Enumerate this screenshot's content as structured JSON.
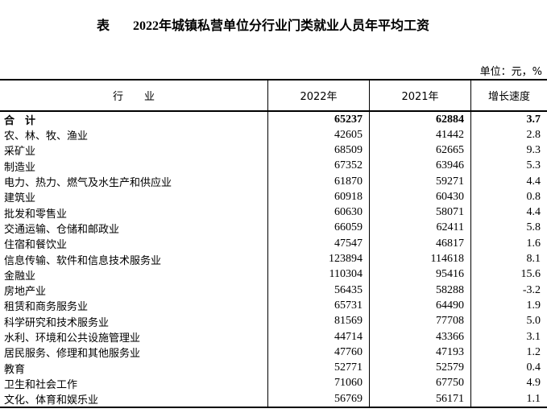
{
  "title": {
    "label": "表",
    "text": "2022年城镇私营单位分行业门类就业人员年平均工资"
  },
  "unit": "单位：元，%",
  "headers": [
    "行　　业",
    "2022年",
    "2021年",
    "增长速度"
  ],
  "rows": [
    {
      "industry": "合　计",
      "y2022": "65237",
      "y2021": "62884",
      "growth": "3.7"
    },
    {
      "industry": "农、林、牧、渔业",
      "y2022": "42605",
      "y2021": "41442",
      "growth": "2.8"
    },
    {
      "industry": "采矿业",
      "y2022": "68509",
      "y2021": "62665",
      "growth": "9.3"
    },
    {
      "industry": "制造业",
      "y2022": "67352",
      "y2021": "63946",
      "growth": "5.3"
    },
    {
      "industry": "电力、热力、燃气及水生产和供应业",
      "y2022": "61870",
      "y2021": "59271",
      "growth": "4.4"
    },
    {
      "industry": "建筑业",
      "y2022": "60918",
      "y2021": "60430",
      "growth": "0.8"
    },
    {
      "industry": "批发和零售业",
      "y2022": "60630",
      "y2021": "58071",
      "growth": "4.4"
    },
    {
      "industry": "交通运输、仓储和邮政业",
      "y2022": "66059",
      "y2021": "62411",
      "growth": "5.8"
    },
    {
      "industry": "住宿和餐饮业",
      "y2022": "47547",
      "y2021": "46817",
      "growth": "1.6"
    },
    {
      "industry": "信息传输、软件和信息技术服务业",
      "y2022": "123894",
      "y2021": "114618",
      "growth": "8.1"
    },
    {
      "industry": "金融业",
      "y2022": "110304",
      "y2021": "95416",
      "growth": "15.6"
    },
    {
      "industry": "房地产业",
      "y2022": "56435",
      "y2021": "58288",
      "growth": "-3.2"
    },
    {
      "industry": "租赁和商务服务业",
      "y2022": "65731",
      "y2021": "64490",
      "growth": "1.9"
    },
    {
      "industry": "科学研究和技术服务业",
      "y2022": "81569",
      "y2021": "77708",
      "growth": "5.0"
    },
    {
      "industry": "水利、环境和公共设施管理业",
      "y2022": "44714",
      "y2021": "43366",
      "growth": "3.1"
    },
    {
      "industry": "居民服务、修理和其他服务业",
      "y2022": "47760",
      "y2021": "47193",
      "growth": "1.2"
    },
    {
      "industry": "教育",
      "y2022": "52771",
      "y2021": "52579",
      "growth": "0.4"
    },
    {
      "industry": "卫生和社会工作",
      "y2022": "71060",
      "y2021": "67750",
      "growth": "4.9"
    },
    {
      "industry": "文化、体育和娱乐业",
      "y2022": "56769",
      "y2021": "56171",
      "growth": "1.1"
    }
  ]
}
